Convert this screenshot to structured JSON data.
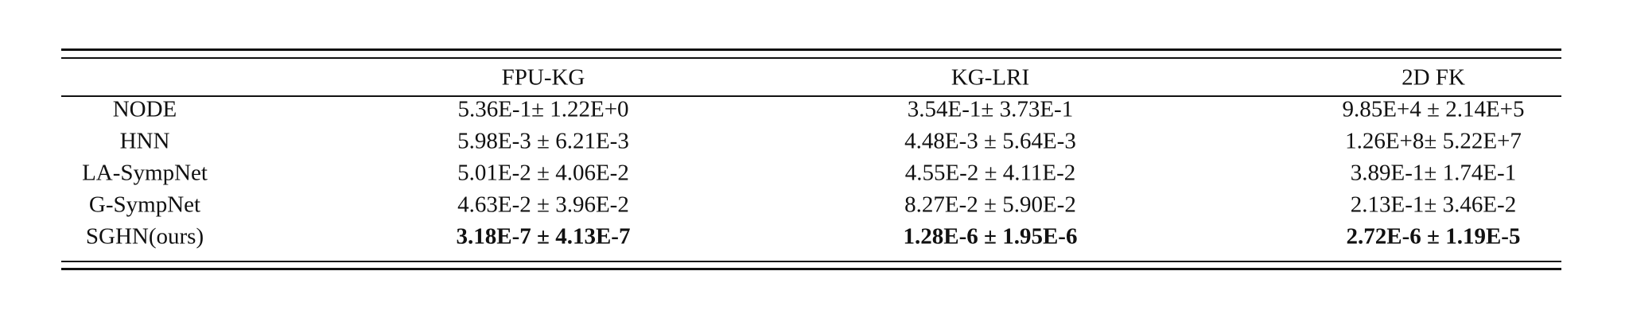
{
  "table": {
    "columns": [
      "",
      "FPU-KG",
      "KG-LRI",
      "2D FK"
    ],
    "rows": [
      {
        "method": "NODE",
        "values": [
          "5.36E-1± 1.22E+0",
          "3.54E-1± 3.73E-1",
          "9.85E+4 ± 2.14E+5"
        ],
        "bold": false
      },
      {
        "method": "HNN",
        "values": [
          "5.98E-3 ± 6.21E-3",
          "4.48E-3 ± 5.64E-3",
          "1.26E+8± 5.22E+7"
        ],
        "bold": false
      },
      {
        "method": "LA-SympNet",
        "values": [
          "5.01E-2 ± 4.06E-2",
          "4.55E-2 ± 4.11E-2",
          "3.89E-1± 1.74E-1"
        ],
        "bold": false
      },
      {
        "method": "G-SympNet",
        "values": [
          "4.63E-2 ± 3.96E-2",
          "8.27E-2 ± 5.90E-2",
          "2.13E-1± 3.46E-2"
        ],
        "bold": false
      },
      {
        "method": "SGHN(ours)",
        "values": [
          "3.18E-7 ± 4.13E-7",
          "1.28E-6 ± 1.95E-6",
          "2.72E-6 ± 1.19E-5"
        ],
        "bold": true
      }
    ]
  }
}
